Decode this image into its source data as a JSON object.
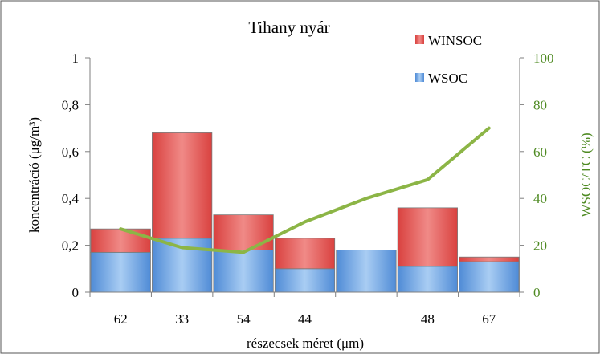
{
  "chart_data": {
    "type": "bar",
    "stacked": true,
    "title": "Tihany nyár",
    "xlabel": "részecsek méret (μm)",
    "ylabel": "koncentráció (μg/m³)",
    "y2label": "WSOC/TC (%)",
    "categories": [
      "62",
      "33",
      "54",
      "44",
      "",
      "48",
      "67"
    ],
    "ylim": [
      0,
      1
    ],
    "y_ticks": [
      "0",
      "0,2",
      "0,4",
      "0,6",
      "0,8",
      "1"
    ],
    "y2lim": [
      0,
      100
    ],
    "y2_ticks": [
      "0",
      "20",
      "40",
      "60",
      "80",
      "100"
    ],
    "grid": false,
    "legend_position": "top-right",
    "series": [
      {
        "name": "WSOC",
        "kind": "bar",
        "color": "#6a9fdc",
        "values": [
          0.17,
          0.23,
          0.18,
          0.1,
          0.18,
          0.11,
          0.13
        ]
      },
      {
        "name": "WINSOC",
        "kind": "bar",
        "color": "#e8615e",
        "values": [
          0.1,
          0.45,
          0.15,
          0.13,
          0.0,
          0.25,
          0.02
        ]
      },
      {
        "name": "",
        "kind": "line",
        "axis": "right",
        "color": "#8cb546",
        "values": [
          27,
          19,
          17,
          30,
          40,
          48,
          70
        ]
      }
    ]
  }
}
